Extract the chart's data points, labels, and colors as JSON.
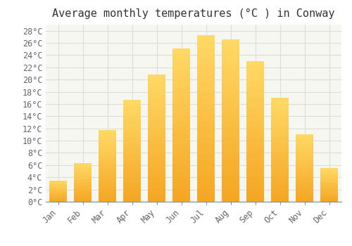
{
  "title": "Average monthly temperatures (°C ) in Conway",
  "months": [
    "Jan",
    "Feb",
    "Mar",
    "Apr",
    "May",
    "Jun",
    "Jul",
    "Aug",
    "Sep",
    "Oct",
    "Nov",
    "Dec"
  ],
  "values": [
    3.5,
    6.3,
    11.7,
    16.7,
    20.8,
    25.1,
    27.3,
    26.6,
    23.0,
    17.0,
    11.0,
    5.5
  ],
  "bar_color_bottom": "#F5A623",
  "bar_color_top": "#FFD966",
  "background_color": "#FFFFFF",
  "plot_bg_color": "#F7F7F2",
  "grid_color": "#DDDDDD",
  "ylim": [
    0,
    29
  ],
  "ytick_step": 2,
  "title_fontsize": 11,
  "tick_fontsize": 8.5,
  "font_family": "monospace"
}
